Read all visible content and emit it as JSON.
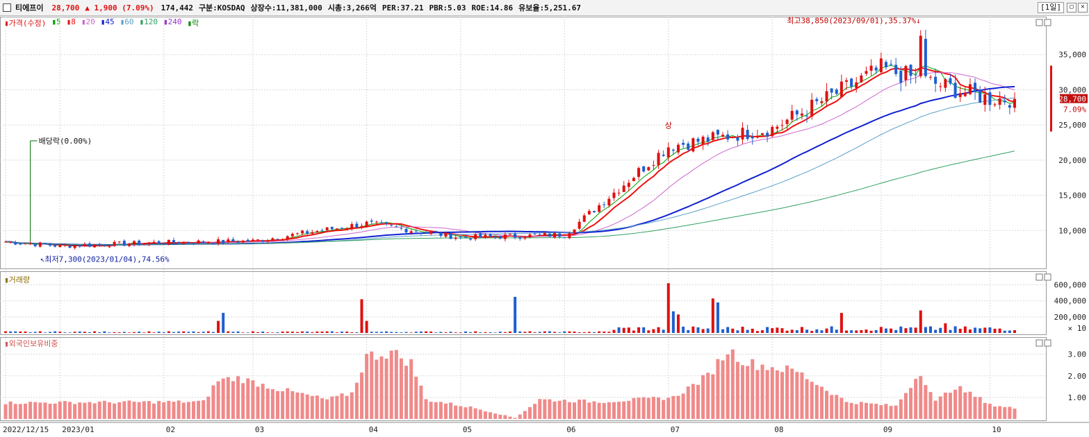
{
  "header": {
    "name": "티에프이",
    "price": "28,700",
    "change": "▲ 1,900 (7.09%)",
    "volume": "174,442",
    "market": "구분:KOSDAQ",
    "shares": "상장수:11,381,000",
    "marketcap": "시총:3,266억",
    "per": "PER:37.21",
    "pbr": "PBR:5.03",
    "roe": "ROE:14.86",
    "reserve": "유보율:5,251.67",
    "period": "[1일]"
  },
  "legend": {
    "price": "가격(수정)",
    "ma": [
      "5",
      "8",
      "20",
      "45",
      "60",
      "120",
      "240"
    ],
    "ex": "락"
  },
  "annotations": {
    "dividend": "배당락(0.00%)",
    "high": "최고38,850(2023/09/01),35.37%",
    "low": "최저7,300(2023/01/04),74.56%",
    "limit_up": "상"
  },
  "price_badge": {
    "value": "28,700",
    "pct": "7.09%"
  },
  "panels": {
    "volume_title": "거래량",
    "foreign_title": "외국인보유비중",
    "volume_unit": "× 10"
  },
  "colors": {
    "up": "#e01010",
    "down": "#1f5fd0",
    "ma5": "#00a000",
    "ma8": "#ee1111",
    "ma20": "#cc66cc",
    "ma45": "#1020d0",
    "ma60": "#5aa0c8",
    "ma120": "#2fa060",
    "foreign": "#f08a8a"
  },
  "chart_data": [
    {
      "type": "candlestick",
      "title": "",
      "x_ticks": [
        "2022/12/15",
        "2023/01",
        "02",
        "03",
        "04",
        "05",
        "06",
        "07",
        "08",
        "09",
        "10"
      ],
      "y_ticks": [
        "10,000",
        "15,000",
        "20,000",
        "25,000",
        "30,000",
        "35,000"
      ],
      "ylim": [
        5000,
        40000
      ],
      "monthly_close_approx": {
        "2022/12": 8400,
        "2023/01": 7800,
        "2023/02": 8300,
        "2023/03": 8500,
        "2023/04": 11000,
        "2023/05": 9000,
        "2023/06": 9400,
        "2023/07": 22000,
        "2023/08": 24500,
        "2023/09": 33000,
        "2023/10": 28700
      },
      "last_close": 28700,
      "high": 38850,
      "low": 7300
    },
    {
      "type": "bar",
      "title": "거래량",
      "y_ticks": [
        "200,000",
        "400,000",
        "600,000"
      ],
      "ylim": [
        0,
        700000
      ],
      "peak_approx": 620000
    },
    {
      "type": "bar",
      "title": "외국인보유비중",
      "y_ticks": [
        "1.00",
        "2.00",
        "3.00"
      ],
      "ylim": [
        0,
        3.6
      ],
      "peak_approx": 3.3
    }
  ]
}
